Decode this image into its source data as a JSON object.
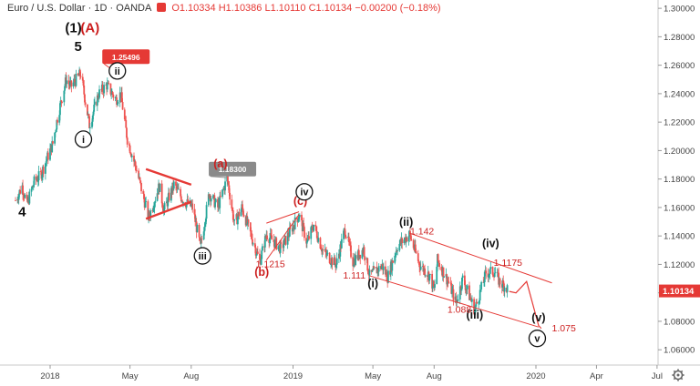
{
  "header": {
    "symbol": "Euro / U.S. Dollar · 1D · OANDA",
    "ohlc": "O1.10334  H1.10386  L1.10110  C1.10134  −0.00200  (−0.18%)"
  },
  "colors": {
    "candle_up": "#26a69a",
    "candle_down": "#ef5350",
    "annotation_red": "#e53935",
    "wave_label_red": "#cc1e1e",
    "price_marker_bg": "#e53935",
    "callout_gray": "#8a8a8a"
  },
  "chart_data": {
    "type": "candlestick",
    "title": "Euro / U.S. Dollar · 1D · OANDA",
    "x_tick_labels": [
      "2018",
      "May",
      "Aug",
      "2019",
      "May",
      "Aug",
      "2020",
      "Apr",
      "Jul"
    ],
    "y_tick_labels": [
      "1.30000",
      "1.28000",
      "1.26000",
      "1.24000",
      "1.22000",
      "1.20000",
      "1.18000",
      "1.16000",
      "1.14000",
      "1.12000",
      "1.10000",
      "1.08000",
      "1.06000"
    ],
    "ylim": [
      1.055,
      1.302
    ],
    "grid": false,
    "last_price_label": "1.10134",
    "price_path": [
      {
        "date": "2017-11-10",
        "price": 1.165
      },
      {
        "date": "2017-11-20",
        "price": 1.175
      },
      {
        "date": "2017-11-27",
        "price": 1.162
      },
      {
        "date": "2017-12-08",
        "price": 1.178
      },
      {
        "date": "2017-12-18",
        "price": 1.183
      },
      {
        "date": "2018-01-05",
        "price": 1.205
      },
      {
        "date": "2018-01-12",
        "price": 1.223
      },
      {
        "date": "2018-01-25",
        "price": 1.25
      },
      {
        "date": "2018-02-01",
        "price": 1.245
      },
      {
        "date": "2018-02-16",
        "price": 1.254
      },
      {
        "date": "2018-03-01",
        "price": 1.218
      },
      {
        "date": "2018-03-15",
        "price": 1.24
      },
      {
        "date": "2018-03-27",
        "price": 1.246
      },
      {
        "date": "2018-04-10",
        "price": 1.236
      },
      {
        "date": "2018-04-17",
        "price": 1.24
      },
      {
        "date": "2018-04-27",
        "price": 1.208
      },
      {
        "date": "2018-05-10",
        "price": 1.188
      },
      {
        "date": "2018-05-29",
        "price": 1.153
      },
      {
        "date": "2018-06-14",
        "price": 1.175
      },
      {
        "date": "2018-06-21",
        "price": 1.158
      },
      {
        "date": "2018-07-06",
        "price": 1.176
      },
      {
        "date": "2018-07-20",
        "price": 1.165
      },
      {
        "date": "2018-08-03",
        "price": 1.16
      },
      {
        "date": "2018-08-15",
        "price": 1.132
      },
      {
        "date": "2018-08-28",
        "price": 1.17
      },
      {
        "date": "2018-09-10",
        "price": 1.16
      },
      {
        "date": "2018-09-24",
        "price": 1.181
      },
      {
        "date": "2018-10-05",
        "price": 1.148
      },
      {
        "date": "2018-10-16",
        "price": 1.16
      },
      {
        "date": "2018-11-12",
        "price": 1.122
      },
      {
        "date": "2018-11-22",
        "price": 1.141
      },
      {
        "date": "2018-12-14",
        "price": 1.131
      },
      {
        "date": "2019-01-10",
        "price": 1.155
      },
      {
        "date": "2019-01-22",
        "price": 1.135
      },
      {
        "date": "2019-02-01",
        "price": 1.148
      },
      {
        "date": "2019-02-15",
        "price": 1.129
      },
      {
        "date": "2019-03-07",
        "price": 1.12
      },
      {
        "date": "2019-03-20",
        "price": 1.145
      },
      {
        "date": "2019-04-01",
        "price": 1.122
      },
      {
        "date": "2019-04-17",
        "price": 1.131
      },
      {
        "date": "2019-04-26",
        "price": 1.112
      },
      {
        "date": "2019-05-15",
        "price": 1.119
      },
      {
        "date": "2019-05-23",
        "price": 1.111
      },
      {
        "date": "2019-06-07",
        "price": 1.133
      },
      {
        "date": "2019-06-25",
        "price": 1.141
      },
      {
        "date": "2019-07-10",
        "price": 1.12
      },
      {
        "date": "2019-07-25",
        "price": 1.112
      },
      {
        "date": "2019-08-01",
        "price": 1.102
      },
      {
        "date": "2019-08-06",
        "price": 1.123
      },
      {
        "date": "2019-08-23",
        "price": 1.107
      },
      {
        "date": "2019-09-03",
        "price": 1.093
      },
      {
        "date": "2019-09-13",
        "price": 1.11
      },
      {
        "date": "2019-10-01",
        "price": 1.088
      },
      {
        "date": "2019-10-18",
        "price": 1.114
      },
      {
        "date": "2019-10-31",
        "price": 1.115
      },
      {
        "date": "2019-11-07",
        "price": 1.108
      },
      {
        "date": "2019-11-19",
        "price": 1.103
      }
    ],
    "projection_path": [
      {
        "date": "2019-11-22",
        "price": 1.101
      },
      {
        "date": "2019-12-02",
        "price": 1.1
      },
      {
        "date": "2019-12-18",
        "price": 1.108
      },
      {
        "date": "2020-01-05",
        "price": 1.077
      },
      {
        "date": "2020-01-09",
        "price": 1.075
      }
    ],
    "trend_lines": [
      {
        "name": "upper-channel",
        "from": {
          "date": "2019-06-25",
          "price": 1.142
        },
        "to": {
          "date": "2020-01-25",
          "price": 1.107
        }
      },
      {
        "name": "lower-channel",
        "from": {
          "date": "2019-04-26",
          "price": 1.112
        },
        "to": {
          "date": "2020-01-05",
          "price": 1.076
        }
      },
      {
        "name": "triangle-top",
        "from": {
          "date": "2018-05-25",
          "price": 1.187
        },
        "to": {
          "date": "2018-08-01",
          "price": 1.176
        }
      },
      {
        "name": "triangle-bottom",
        "from": {
          "date": "2018-05-25",
          "price": 1.152
        },
        "to": {
          "date": "2018-08-01",
          "price": 1.164
        }
      },
      {
        "name": "c-leg-top",
        "from": {
          "date": "2018-11-22",
          "price": 1.149
        },
        "to": {
          "date": "2019-01-10",
          "price": 1.157
        }
      },
      {
        "name": "c-leg-bottom",
        "from": {
          "date": "2018-11-22",
          "price": 1.123
        },
        "to": {
          "date": "2019-01-10",
          "price": 1.155
        }
      }
    ],
    "wave_labels": [
      {
        "text": "(1)",
        "date": "2018-02-05",
        "price": 1.283,
        "style": "black"
      },
      {
        "text": "(A)",
        "date": "2018-03-02",
        "price": 1.283,
        "style": "red"
      },
      {
        "text": "5",
        "date": "2018-02-12",
        "price": 1.27,
        "style": "black"
      },
      {
        "text": "4",
        "date": "2017-11-20",
        "price": 1.154,
        "style": "black"
      },
      {
        "text": "(a)",
        "date": "2018-09-14",
        "price": 1.188,
        "style": "red"
      },
      {
        "text": "(b)",
        "date": "2018-11-15",
        "price": 1.112,
        "style": "red"
      },
      {
        "text": "(c)",
        "date": "2019-01-12",
        "price": 1.162,
        "style": "red"
      },
      {
        "text": "(ii)",
        "date": "2019-06-20",
        "price": 1.147,
        "style": "black"
      },
      {
        "text": "(i)",
        "date": "2019-05-01",
        "price": 1.104,
        "style": "black"
      },
      {
        "text": "(iii)",
        "date": "2019-10-01",
        "price": 1.082,
        "style": "black"
      },
      {
        "text": "(iv)",
        "date": "2019-10-25",
        "price": 1.132,
        "style": "black"
      },
      {
        "text": "(v)",
        "date": "2020-01-05",
        "price": 1.08,
        "style": "black"
      }
    ],
    "circled_labels": [
      {
        "text": "ii",
        "date": "2018-04-12",
        "price": 1.256
      },
      {
        "text": "i",
        "date": "2018-02-20",
        "price": 1.208
      },
      {
        "text": "iii",
        "date": "2018-08-18",
        "price": 1.126
      },
      {
        "text": "iv",
        "date": "2019-01-18",
        "price": 1.171
      },
      {
        "text": "v",
        "date": "2020-01-03",
        "price": 1.068
      }
    ],
    "price_annotations": [
      {
        "text": "1.1215",
        "date": "2018-11-28",
        "price": 1.118
      },
      {
        "text": "1.111",
        "date": "2019-04-03",
        "price": 1.11
      },
      {
        "text": "1.142",
        "date": "2019-07-14",
        "price": 1.141
      },
      {
        "text": "1.088",
        "date": "2019-09-08",
        "price": 1.086
      },
      {
        "text": "1.1175",
        "date": "2019-11-20",
        "price": 1.119
      },
      {
        "text": "1.075",
        "date": "2020-02-12",
        "price": 1.073
      }
    ],
    "callouts": [
      {
        "text": "1.25496",
        "style": "red",
        "date": "2018-04-25",
        "price": 1.266,
        "target_date": "2018-04-10",
        "target_price": 1.255
      },
      {
        "text": "1.18300",
        "style": "gray",
        "date": "2018-10-02",
        "price": 1.187,
        "target_date": "2018-09-24",
        "target_price": 1.181
      }
    ]
  }
}
